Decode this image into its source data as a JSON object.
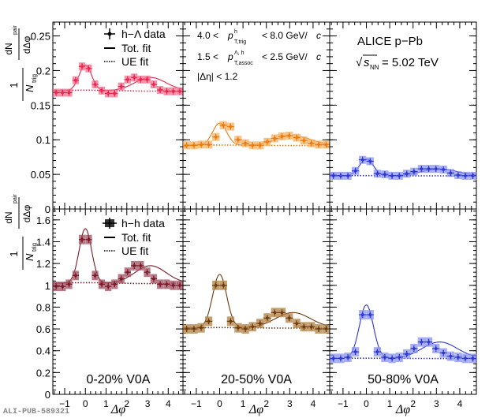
{
  "figure_id": "ALI-PUB-589321",
  "chart_data": [
    {
      "type": "scatter",
      "title": "",
      "row": "h-Lambda",
      "centrality": "0-20% V0A",
      "color": "#e8254a",
      "band_color": "#f07090",
      "ylim": [
        0,
        0.27
      ],
      "xlim": [
        -1.571,
        4.712
      ],
      "x": [
        -1.41,
        -1.1,
        -0.79,
        -0.47,
        -0.16,
        0.16,
        0.47,
        0.79,
        1.1,
        1.41,
        1.73,
        2.04,
        2.36,
        2.67,
        2.98,
        3.3,
        3.61,
        3.93,
        4.24,
        4.56
      ],
      "values": [
        0.168,
        0.168,
        0.168,
        0.186,
        0.206,
        0.203,
        0.18,
        0.171,
        0.167,
        0.167,
        0.177,
        0.187,
        0.19,
        0.187,
        0.187,
        0.18,
        0.172,
        0.17,
        0.17,
        0.17
      ],
      "ue_level": 0.171,
      "tot_fit_peak": 0.208
    },
    {
      "type": "scatter",
      "row": "h-Lambda",
      "centrality": "20-50% V0A",
      "color": "#e87a10",
      "band_color": "#f5b060",
      "ylim": [
        0,
        0.27
      ],
      "xlim": [
        -1.571,
        4.712
      ],
      "x": [
        -1.41,
        -1.1,
        -0.79,
        -0.47,
        -0.16,
        0.16,
        0.47,
        0.79,
        1.1,
        1.41,
        1.73,
        2.04,
        2.36,
        2.67,
        2.98,
        3.3,
        3.61,
        3.93,
        4.24,
        4.56
      ],
      "values": [
        0.092,
        0.092,
        0.093,
        0.093,
        0.104,
        0.121,
        0.119,
        0.1,
        0.095,
        0.092,
        0.092,
        0.097,
        0.102,
        0.105,
        0.106,
        0.103,
        0.099,
        0.095,
        0.093,
        0.093
      ],
      "ue_level": 0.092,
      "tot_fit_peak": 0.124
    },
    {
      "type": "scatter",
      "row": "h-Lambda",
      "centrality": "50-80% V0A",
      "color": "#2b35d0",
      "band_color": "#8a93ee",
      "ylim": [
        0,
        0.27
      ],
      "xlim": [
        -1.571,
        4.712
      ],
      "x": [
        -1.41,
        -1.1,
        -0.79,
        -0.47,
        -0.16,
        0.16,
        0.47,
        0.79,
        1.1,
        1.41,
        1.73,
        2.04,
        2.36,
        2.67,
        2.98,
        3.3,
        3.61,
        3.93,
        4.24,
        4.56
      ],
      "values": [
        0.048,
        0.048,
        0.048,
        0.055,
        0.071,
        0.069,
        0.051,
        0.05,
        0.048,
        0.048,
        0.051,
        0.054,
        0.058,
        0.058,
        0.058,
        0.057,
        0.052,
        0.049,
        0.048,
        0.048
      ],
      "ue_level": 0.048,
      "tot_fit_peak": 0.072
    },
    {
      "type": "scatter",
      "row": "h-h",
      "centrality": "0-20% V0A",
      "color": "#7a1a28",
      "band_color": "#a05060",
      "ylim": [
        0,
        1.7
      ],
      "xlim": [
        -1.571,
        4.712
      ],
      "x": [
        -1.41,
        -1.1,
        -0.79,
        -0.47,
        -0.16,
        0.16,
        0.47,
        0.79,
        1.1,
        1.41,
        1.73,
        2.04,
        2.36,
        2.67,
        2.98,
        3.3,
        3.61,
        3.93,
        4.24,
        4.56
      ],
      "values": [
        0.99,
        0.99,
        1.01,
        1.09,
        1.42,
        1.42,
        1.09,
        1.01,
        0.99,
        1.01,
        1.06,
        1.12,
        1.18,
        1.18,
        1.12,
        1.06,
        1.01,
        1.01,
        1.0,
        1.0
      ],
      "ue_level": 1.02,
      "tot_fit_peak": 1.52
    },
    {
      "type": "scatter",
      "row": "h-h",
      "centrality": "20-50% V0A",
      "color": "#6b3a10",
      "band_color": "#b08040",
      "ylim": [
        0,
        1.7
      ],
      "xlim": [
        -1.571,
        4.712
      ],
      "x": [
        -1.41,
        -1.1,
        -0.79,
        -0.47,
        -0.16,
        0.16,
        0.47,
        0.79,
        1.1,
        1.41,
        1.73,
        2.04,
        2.36,
        2.67,
        2.98,
        3.3,
        3.61,
        3.93,
        4.24,
        4.56
      ],
      "values": [
        0.6,
        0.6,
        0.61,
        0.67,
        1.0,
        1.0,
        0.67,
        0.61,
        0.6,
        0.62,
        0.65,
        0.7,
        0.75,
        0.75,
        0.7,
        0.65,
        0.62,
        0.62,
        0.6,
        0.6
      ],
      "ue_level": 0.61,
      "tot_fit_peak": 1.1
    },
    {
      "type": "scatter",
      "row": "h-h",
      "centrality": "50-80% V0A",
      "color": "#2b35d0",
      "band_color": "#8a93ee",
      "ylim": [
        0,
        1.7
      ],
      "xlim": [
        -1.571,
        4.712
      ],
      "x": [
        -1.41,
        -1.1,
        -0.79,
        -0.47,
        -0.16,
        0.16,
        0.47,
        0.79,
        1.1,
        1.41,
        1.73,
        2.04,
        2.36,
        2.67,
        2.98,
        3.3,
        3.61,
        3.93,
        4.24,
        4.56
      ],
      "values": [
        0.33,
        0.33,
        0.34,
        0.39,
        0.73,
        0.73,
        0.39,
        0.34,
        0.33,
        0.34,
        0.37,
        0.42,
        0.48,
        0.48,
        0.42,
        0.38,
        0.35,
        0.34,
        0.33,
        0.33
      ],
      "ue_level": 0.33,
      "tot_fit_peak": 0.82
    }
  ],
  "axes": {
    "xlabel": "Δφ",
    "x_ticks": [
      "−1",
      "0",
      "1",
      "2",
      "3",
      "4"
    ],
    "top_y_ticks": [
      "0",
      "0.05",
      "0.1",
      "0.15",
      "0.2",
      "0.25"
    ],
    "bottom_y_ticks": [
      "0",
      "0.2",
      "0.4",
      "0.6",
      "0.8",
      "1",
      "1.2",
      "1.4",
      "1.6"
    ],
    "ylabel_prefix": "1",
    "ylabel_den": "N",
    "ylabel_den_sub": "trig",
    "ylabel_num": "dN",
    "ylabel_num_sub": "pair",
    "ylabel_num_den": "dΔφ"
  },
  "legend_top": {
    "data": "h−Λ data",
    "tot": "Tot. fit",
    "ue": "UE fit"
  },
  "legend_bottom": {
    "data": "h−h data",
    "tot": "Tot. fit",
    "ue": "UE fit"
  },
  "annotations": {
    "trig_low": "4.0 <",
    "trig_high": "< 8.0 GeV/",
    "trig_p": "p",
    "trig_sup": "h",
    "trig_sub": "T,trig",
    "assoc_low": "1.5 <",
    "assoc_high": "< 2.5 GeV/",
    "assoc_p": "p",
    "assoc_sup": "Λ, h",
    "assoc_sub": "T,assoc",
    "c_unit": "c",
    "eta_cut": "|Δη| < 1.2",
    "experiment": "ALICE p−Pb",
    "energy_sqrt": "√",
    "energy_s": "s",
    "energy_sub": "NN",
    "energy_val": "= 5.02 TeV"
  },
  "centrality_labels": [
    "0-20% V0A",
    "20-50% V0A",
    "50-80% V0A"
  ]
}
